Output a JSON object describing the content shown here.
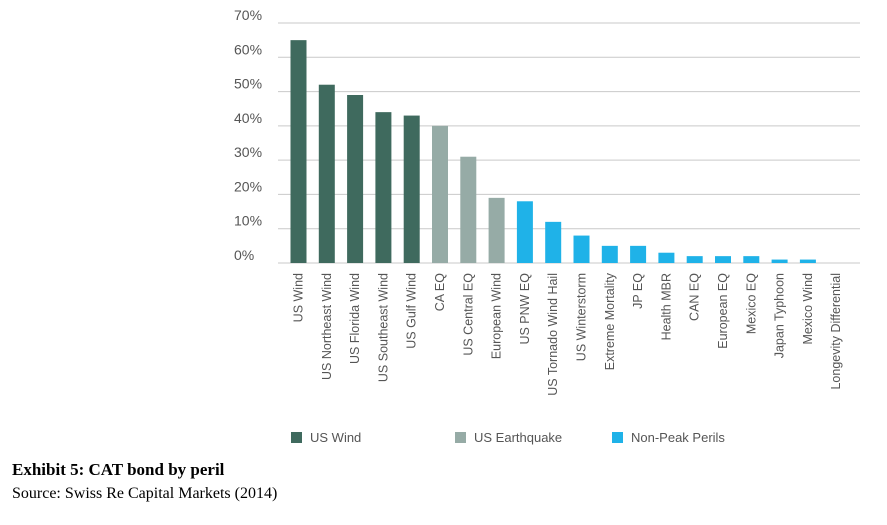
{
  "chart_data": {
    "type": "bar",
    "categories": [
      "US Wind",
      "US Northeast Wind",
      "US Florida Wind",
      "US Southeast Wind",
      "US Gulf Wind",
      "CA EQ",
      "US Central EQ",
      "European Wind",
      "US PNW EQ",
      "US Tornado Wind Hail",
      "US Winterstorm",
      "Extreme Mortality",
      "JP EQ",
      "Health MBR",
      "CAN EQ",
      "European EQ",
      "Mexico EQ",
      "Japan Typhoon",
      "Mexico Wind",
      "Longevity Differential"
    ],
    "values": [
      65,
      52,
      49,
      44,
      43,
      40,
      31,
      19,
      18,
      12,
      8,
      5,
      5,
      3,
      2,
      2,
      2,
      1,
      1,
      0
    ],
    "groups": [
      "US Wind",
      "US Wind",
      "US Wind",
      "US Wind",
      "US Wind",
      "US Earthquake",
      "US Earthquake",
      "US Earthquake",
      "Non-Peak Perils",
      "Non-Peak Perils",
      "Non-Peak Perils",
      "Non-Peak Perils",
      "Non-Peak Perils",
      "Non-Peak Perils",
      "Non-Peak Perils",
      "Non-Peak Perils",
      "Non-Peak Perils",
      "Non-Peak Perils",
      "Non-Peak Perils",
      "Non-Peak Perils"
    ],
    "legend": [
      {
        "name": "US Wind",
        "color": "#3f6a5e"
      },
      {
        "name": "US Earthquake",
        "color": "#96aba6"
      },
      {
        "name": "Non-Peak Perils",
        "color": "#1fb2e8"
      }
    ],
    "ylim": [
      0,
      70
    ],
    "yticks": [
      0,
      10,
      20,
      30,
      40,
      50,
      60,
      70
    ],
    "ytick_labels": [
      "0%",
      "10%",
      "20%",
      "30%",
      "40%",
      "50%",
      "60%",
      "70%"
    ],
    "grid": true,
    "legend_position": "bottom",
    "title": "",
    "xlabel": "",
    "ylabel": ""
  },
  "caption": {
    "title": "Exhibit 5: CAT bond by peril",
    "source": "Source: Swiss Re Capital Markets (2014)"
  }
}
